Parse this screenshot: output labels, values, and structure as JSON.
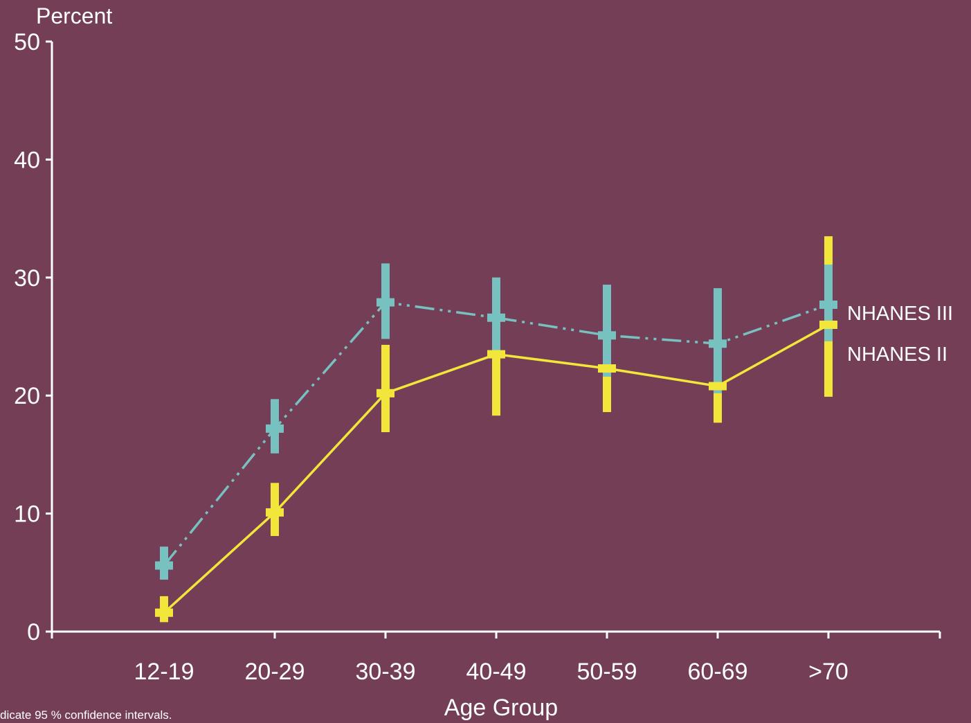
{
  "chart_data": {
    "type": "line",
    "ylabel": "Percent",
    "xlabel": "Age Group",
    "footnote": "dicate 95 % confidence intervals.",
    "categories": [
      "12-19",
      "20-29",
      "30-39",
      "40-49",
      "50-59",
      "60-69",
      ">70"
    ],
    "yticks": [
      "0",
      "10",
      "20",
      "30",
      "40",
      "50"
    ],
    "ylim": [
      0,
      50
    ],
    "grid": false,
    "legend": "inline-right",
    "series": [
      {
        "name": "NHANES III",
        "color": "#77c1c1",
        "line_style": "dash-dot-dot",
        "values": [
          5.6,
          17.2,
          27.9,
          26.6,
          25.1,
          24.4,
          27.7
        ],
        "ci_low": [
          4.4,
          15.1,
          24.8,
          23.5,
          21.6,
          20.2,
          24.6
        ],
        "ci_high": [
          7.2,
          19.7,
          31.2,
          30.0,
          29.4,
          29.1,
          31.1
        ]
      },
      {
        "name": "NHANES II",
        "color": "#f3e63a",
        "line_style": "solid",
        "values": [
          1.6,
          10.1,
          20.2,
          23.5,
          22.3,
          20.8,
          26.0
        ],
        "ci_low": [
          0.8,
          8.1,
          16.9,
          18.3,
          18.6,
          17.7,
          19.9
        ],
        "ci_high": [
          3.0,
          12.6,
          24.3,
          30.0,
          27.0,
          22.5,
          33.5
        ]
      }
    ]
  }
}
